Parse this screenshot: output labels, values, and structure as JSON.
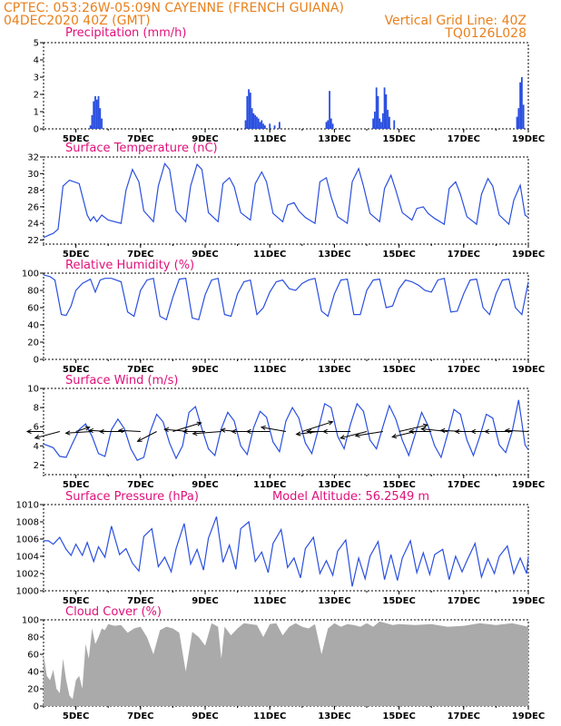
{
  "header": {
    "line1": "CPTEC:   053:26W-05:09N   CAYENNE (FRENCH GUIANA)",
    "date": "04DEC2020 40Z (GMT)",
    "grid_note": "Vertical Grid Line: 40Z",
    "run_id": "TQ0126L028"
  },
  "colors": {
    "header": "#e8801c",
    "title": "#e0107a",
    "line": "#2a4fe0",
    "cloud": "#aaaaaa",
    "arrow": "#000000"
  },
  "x_axis": {
    "start_day": 4,
    "end_day": 19,
    "tick_days": [
      5,
      7,
      9,
      11,
      13,
      15,
      17,
      19
    ],
    "tick_labels": [
      "5DEC",
      "7DEC",
      "9DEC",
      "11DEC",
      "13DEC",
      "15DEC",
      "17DEC",
      "19DEC"
    ]
  },
  "chart_data": [
    {
      "id": "precip",
      "type": "bar",
      "title": "Precipitation (mm/h)",
      "ylim": [
        0,
        5
      ],
      "yticks": [
        0,
        1,
        2,
        3,
        4,
        5
      ],
      "x": [
        5.45,
        5.5,
        5.55,
        5.6,
        5.65,
        5.7,
        5.75,
        5.8,
        10.25,
        10.3,
        10.35,
        10.4,
        10.45,
        10.5,
        10.55,
        10.6,
        10.65,
        10.7,
        10.75,
        10.8,
        10.85,
        11.0,
        11.15,
        11.3,
        12.75,
        12.8,
        12.85,
        12.9,
        12.95,
        14.2,
        14.25,
        14.3,
        14.35,
        14.4,
        14.45,
        14.5,
        14.55,
        14.6,
        14.65,
        14.7,
        14.85,
        18.65,
        18.7,
        18.75,
        18.8,
        18.85
      ],
      "values": [
        0.2,
        0.8,
        1.6,
        1.9,
        1.7,
        1.9,
        1.2,
        0.6,
        0.5,
        1.9,
        2.3,
        2.1,
        1.2,
        0.9,
        0.8,
        0.7,
        0.6,
        0.4,
        0.5,
        0.3,
        0.2,
        0.3,
        0.2,
        0.4,
        0.4,
        0.5,
        2.2,
        0.6,
        0.3,
        0.6,
        1.0,
        2.4,
        1.9,
        0.6,
        0.4,
        0.9,
        2.4,
        2.0,
        1.1,
        0.7,
        0.5,
        0.7,
        1.2,
        2.7,
        3.0,
        1.4
      ]
    },
    {
      "id": "temp",
      "type": "line",
      "title": "Surface Temperature (nC)",
      "ylim": [
        21.5,
        32
      ],
      "yticks": [
        22,
        24,
        26,
        28,
        30,
        32
      ],
      "x": [
        4.0,
        4.3,
        4.45,
        4.6,
        4.8,
        5.1,
        5.35,
        5.45,
        5.55,
        5.65,
        5.8,
        6.0,
        6.4,
        6.55,
        6.75,
        6.95,
        7.1,
        7.4,
        7.55,
        7.75,
        7.9,
        8.1,
        8.4,
        8.55,
        8.75,
        8.9,
        9.1,
        9.4,
        9.55,
        9.75,
        9.9,
        10.1,
        10.4,
        10.55,
        10.75,
        10.9,
        11.1,
        11.4,
        11.55,
        11.75,
        11.9,
        12.1,
        12.4,
        12.55,
        12.75,
        12.9,
        13.1,
        13.4,
        13.55,
        13.75,
        13.9,
        14.1,
        14.4,
        14.55,
        14.75,
        14.9,
        15.1,
        15.4,
        15.55,
        15.75,
        15.9,
        16.1,
        16.4,
        16.55,
        16.75,
        16.9,
        17.1,
        17.4,
        17.55,
        17.75,
        17.9,
        18.1,
        18.4,
        18.55,
        18.75,
        18.9,
        19.0
      ],
      "values": [
        22.3,
        22.8,
        23.3,
        28.5,
        29.2,
        28.8,
        25.0,
        24.3,
        24.8,
        24.2,
        25.0,
        24.4,
        24.0,
        28.0,
        30.5,
        29.0,
        25.5,
        24.2,
        28.5,
        31.2,
        30.5,
        25.5,
        24.2,
        28.5,
        31.1,
        30.5,
        25.3,
        24.2,
        28.8,
        29.5,
        28.4,
        25.3,
        24.4,
        28.8,
        30.2,
        29.0,
        25.2,
        24.2,
        26.2,
        26.5,
        25.5,
        24.7,
        24.0,
        29.0,
        29.5,
        27.2,
        24.8,
        24.0,
        29.0,
        30.6,
        28.5,
        25.2,
        24.2,
        28.2,
        29.8,
        28.0,
        25.3,
        24.4,
        25.8,
        26.0,
        25.2,
        24.6,
        23.9,
        28.2,
        29.0,
        27.5,
        24.8,
        23.9,
        27.5,
        29.4,
        28.5,
        25.0,
        23.9,
        26.8,
        28.6,
        25.0,
        24.7
      ]
    },
    {
      "id": "rh",
      "type": "line",
      "title": "Relative Humidity (%)",
      "ylim": [
        0,
        100
      ],
      "yticks": [
        0,
        20,
        40,
        60,
        80,
        100
      ],
      "x": [
        4.0,
        4.2,
        4.35,
        4.55,
        4.7,
        4.85,
        5.0,
        5.2,
        5.45,
        5.6,
        5.75,
        5.9,
        6.1,
        6.4,
        6.6,
        6.8,
        7.0,
        7.2,
        7.4,
        7.6,
        7.8,
        8.0,
        8.2,
        8.4,
        8.6,
        8.8,
        9.0,
        9.2,
        9.4,
        9.6,
        9.8,
        10.0,
        10.2,
        10.4,
        10.6,
        10.8,
        11.0,
        11.2,
        11.4,
        11.6,
        11.8,
        12.0,
        12.2,
        12.4,
        12.6,
        12.8,
        13.0,
        13.2,
        13.4,
        13.6,
        13.8,
        14.0,
        14.2,
        14.4,
        14.6,
        14.8,
        15.0,
        15.2,
        15.4,
        15.6,
        15.8,
        16.0,
        16.2,
        16.4,
        16.6,
        16.8,
        17.0,
        17.2,
        17.4,
        17.6,
        17.8,
        18.0,
        18.2,
        18.4,
        18.6,
        18.8,
        19.0
      ],
      "values": [
        98,
        96,
        92,
        52,
        51,
        62,
        80,
        88,
        93,
        78,
        92,
        94,
        94,
        90,
        55,
        50,
        80,
        92,
        94,
        50,
        46,
        72,
        93,
        94,
        48,
        46,
        75,
        92,
        94,
        52,
        50,
        76,
        90,
        92,
        52,
        60,
        78,
        90,
        92,
        82,
        80,
        88,
        92,
        94,
        56,
        50,
        76,
        92,
        93,
        52,
        52,
        80,
        92,
        93,
        60,
        62,
        82,
        92,
        90,
        86,
        80,
        78,
        92,
        94,
        55,
        56,
        76,
        92,
        93,
        60,
        52,
        76,
        92,
        93,
        60,
        52,
        90
      ]
    },
    {
      "id": "wind",
      "type": "line",
      "title": "Surface Wind (m/s)",
      "ylim": [
        1,
        10
      ],
      "yticks": [
        2,
        4,
        6,
        8,
        10
      ],
      "x": [
        4.0,
        4.3,
        4.5,
        4.7,
        4.9,
        5.1,
        5.3,
        5.5,
        5.7,
        5.9,
        6.1,
        6.3,
        6.5,
        6.7,
        6.9,
        7.1,
        7.3,
        7.5,
        7.7,
        7.9,
        8.1,
        8.3,
        8.5,
        8.7,
        8.9,
        9.1,
        9.3,
        9.5,
        9.7,
        9.9,
        10.1,
        10.3,
        10.5,
        10.7,
        10.9,
        11.1,
        11.3,
        11.5,
        11.7,
        11.9,
        12.1,
        12.3,
        12.5,
        12.7,
        12.9,
        13.1,
        13.3,
        13.5,
        13.7,
        13.9,
        14.1,
        14.3,
        14.5,
        14.7,
        14.9,
        15.1,
        15.3,
        15.5,
        15.7,
        15.9,
        16.1,
        16.3,
        16.5,
        16.7,
        16.9,
        17.1,
        17.3,
        17.5,
        17.7,
        17.9,
        18.1,
        18.3,
        18.5,
        18.7,
        18.9,
        19.0
      ],
      "values": [
        4.2,
        3.8,
        2.9,
        2.8,
        4.3,
        5.7,
        6.3,
        5.0,
        3.2,
        2.9,
        5.7,
        6.8,
        5.8,
        3.7,
        2.5,
        2.8,
        5.5,
        7.3,
        6.5,
        4.3,
        2.7,
        4.0,
        7.5,
        8.1,
        5.8,
        3.7,
        3.0,
        5.8,
        7.5,
        6.6,
        4.0,
        3.1,
        5.9,
        7.6,
        7.0,
        4.4,
        3.4,
        6.6,
        8.0,
        6.9,
        4.3,
        3.2,
        5.7,
        8.4,
        8.0,
        5.0,
        3.7,
        6.3,
        8.4,
        7.6,
        4.6,
        3.7,
        6.0,
        8.2,
        6.8,
        4.6,
        3.0,
        5.2,
        7.5,
        6.1,
        4.0,
        2.8,
        5.2,
        7.8,
        7.3,
        4.6,
        3.0,
        5.0,
        7.3,
        6.9,
        4.1,
        3.3,
        5.5,
        8.8,
        4.1,
        3.6
      ]
    },
    {
      "id": "pressure",
      "type": "line",
      "title": "Surface Pressure (hPa)",
      "annotation": "Model Altitude: 56.2549  m",
      "ylim": [
        1000,
        1010
      ],
      "yticks": [
        1000,
        1002,
        1004,
        1006,
        1008,
        1010
      ],
      "x": [
        4.0,
        4.15,
        4.3,
        4.5,
        4.7,
        4.85,
        5.0,
        5.2,
        5.35,
        5.55,
        5.7,
        5.9,
        6.1,
        6.35,
        6.55,
        6.75,
        6.95,
        7.1,
        7.35,
        7.55,
        7.75,
        7.95,
        8.1,
        8.35,
        8.55,
        8.75,
        8.95,
        9.1,
        9.35,
        9.55,
        9.75,
        9.95,
        10.1,
        10.35,
        10.55,
        10.75,
        10.95,
        11.1,
        11.35,
        11.55,
        11.75,
        11.95,
        12.1,
        12.35,
        12.55,
        12.75,
        12.95,
        13.1,
        13.35,
        13.55,
        13.75,
        13.95,
        14.1,
        14.35,
        14.55,
        14.75,
        14.95,
        15.1,
        15.35,
        15.55,
        15.75,
        15.95,
        16.1,
        16.35,
        16.55,
        16.75,
        16.95,
        17.1,
        17.35,
        17.55,
        17.75,
        17.95,
        18.1,
        18.35,
        18.55,
        18.75,
        18.95,
        19.0
      ],
      "values": [
        1005.8,
        1005.8,
        1005.4,
        1006.2,
        1004.8,
        1004.1,
        1005.4,
        1004.1,
        1005.6,
        1003.4,
        1005.1,
        1003.9,
        1007.5,
        1004.2,
        1004.9,
        1003.2,
        1002.3,
        1006.3,
        1007.2,
        1002.8,
        1003.9,
        1002.2,
        1004.9,
        1007.8,
        1003.1,
        1004.8,
        1002.4,
        1006.1,
        1008.6,
        1003.3,
        1005.3,
        1002.5,
        1007.2,
        1008.0,
        1003.4,
        1004.5,
        1002.1,
        1005.5,
        1007.1,
        1002.7,
        1003.8,
        1001.5,
        1004.9,
        1006.2,
        1002.0,
        1003.5,
        1001.8,
        1004.6,
        1005.9,
        1000.5,
        1003.8,
        1001.4,
        1004.0,
        1005.7,
        1001.3,
        1004.2,
        1001.2,
        1003.8,
        1005.8,
        1002.1,
        1004.4,
        1001.9,
        1004.2,
        1004.8,
        1001.3,
        1004.0,
        1002.2,
        1003.5,
        1005.5,
        1001.6,
        1003.7,
        1002.0,
        1004.0,
        1005.2,
        1002.0,
        1003.8,
        1002.0,
        1004.0
      ]
    },
    {
      "id": "cloud",
      "type": "area",
      "title": "Cloud Cover (%)",
      "ylim": [
        0,
        100
      ],
      "yticks": [
        0,
        20,
        40,
        60,
        80,
        100
      ],
      "x": [
        4.0,
        4.1,
        4.2,
        4.3,
        4.4,
        4.5,
        4.6,
        4.7,
        4.8,
        4.9,
        5.0,
        5.1,
        5.2,
        5.3,
        5.4,
        5.5,
        5.6,
        5.7,
        5.8,
        5.9,
        6.0,
        6.2,
        6.4,
        6.6,
        6.8,
        7.0,
        7.2,
        7.4,
        7.6,
        7.8,
        8.0,
        8.2,
        8.4,
        8.6,
        8.8,
        9.0,
        9.2,
        9.4,
        9.5,
        9.6,
        9.8,
        10.0,
        10.2,
        10.4,
        10.6,
        10.8,
        11.0,
        11.2,
        11.4,
        11.6,
        11.8,
        12.0,
        12.2,
        12.4,
        12.6,
        12.8,
        13.0,
        13.2,
        13.4,
        13.6,
        13.8,
        14.0,
        14.2,
        14.4,
        14.6,
        14.8,
        15.0,
        15.5,
        16.0,
        16.5,
        17.0,
        17.5,
        18.0,
        18.5,
        19.0
      ],
      "values": [
        60,
        35,
        30,
        42,
        20,
        15,
        55,
        30,
        12,
        8,
        30,
        35,
        20,
        72,
        55,
        90,
        72,
        80,
        90,
        88,
        95,
        93,
        94,
        85,
        90,
        92,
        80,
        60,
        88,
        92,
        90,
        85,
        40,
        86,
        80,
        70,
        96,
        92,
        55,
        92,
        82,
        90,
        96,
        95,
        94,
        80,
        95,
        96,
        82,
        92,
        96,
        92,
        90,
        95,
        60,
        90,
        96,
        92,
        95,
        94,
        92,
        96,
        92,
        98,
        96,
        94,
        95,
        94,
        95,
        92,
        93,
        96,
        94,
        96,
        92
      ]
    },
    {
      "id": "wind_vectors",
      "type": "scatter",
      "x": [
        4.0,
        4.5,
        5.0,
        5.5,
        6.0,
        6.5,
        7.0,
        7.5,
        8.0,
        8.5,
        9.0,
        9.5,
        10.0,
        10.5,
        11.0,
        11.5,
        12.0,
        12.5,
        13.0,
        13.5,
        14.0,
        14.5,
        15.0,
        15.5,
        16.0,
        16.5,
        17.0,
        17.5,
        18.0,
        18.5,
        19.0
      ],
      "u": [
        -3.0,
        -4.5,
        2.5,
        -4.8,
        -3.5,
        -4.5,
        -4.0,
        -3.5,
        5.2,
        -4.5,
        -4.0,
        -5.2,
        -3.0,
        -4.0,
        -4.2,
        -4.5,
        5.6,
        -4.0,
        -5.0,
        -5.0,
        -4.8,
        -5.0,
        5.2,
        -4.2,
        -4.0,
        -4.8,
        -4.2,
        -4.5,
        -4.5,
        -5.0,
        -4.2
      ],
      "v": [
        0.0,
        -1.2,
        0.8,
        -0.3,
        0.2,
        0.0,
        0.2,
        -1.8,
        1.6,
        0.4,
        0.0,
        -0.4,
        0.3,
        0.0,
        0.0,
        0.8,
        1.8,
        -0.5,
        0.0,
        0.0,
        -1.2,
        -0.8,
        1.2,
        -1.0,
        0.0,
        0.5,
        0.2,
        0.0,
        0.0,
        0.0,
        0.2
      ]
    }
  ]
}
